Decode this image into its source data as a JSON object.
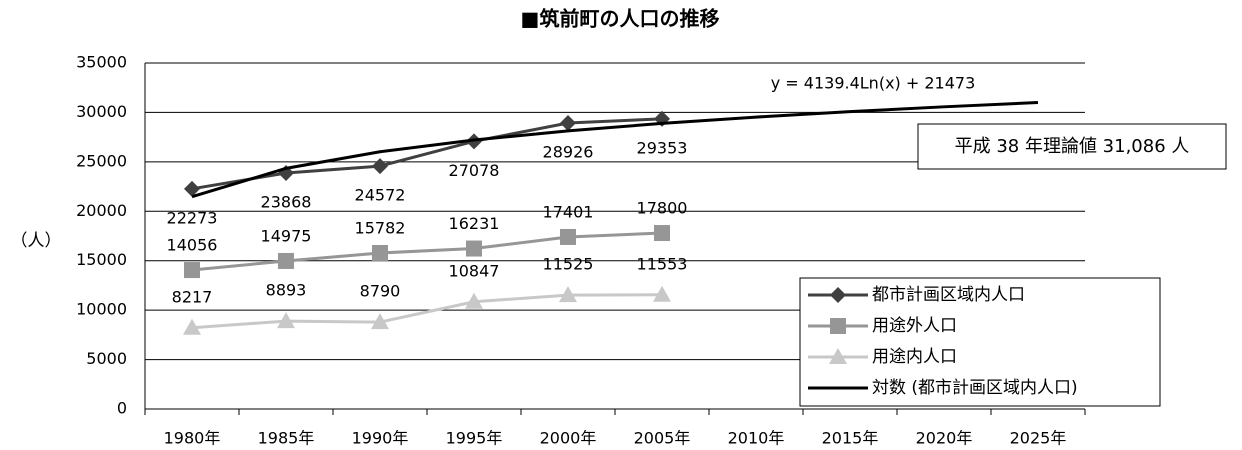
{
  "chart_data": {
    "type": "line",
    "title": "■筑前町の人口の推移",
    "y_label": "（人）",
    "categories": [
      "1980年",
      "1985年",
      "1990年",
      "1995年",
      "2000年",
      "2005年",
      "2010年",
      "2015年",
      "2020年",
      "2025年"
    ],
    "series": [
      {
        "name": "都市計画区域内人口",
        "color": "#404040",
        "marker": "diamond",
        "values": [
          22273,
          23868,
          24572,
          27078,
          28926,
          29353,
          null,
          null,
          null,
          null
        ]
      },
      {
        "name": "用途外人口",
        "color": "#969696",
        "marker": "square",
        "values": [
          14056,
          14975,
          15782,
          16231,
          17401,
          17800,
          null,
          null,
          null,
          null
        ]
      },
      {
        "name": "用途内人口",
        "color": "#c8c8c8",
        "marker": "triangle",
        "values": [
          8217,
          8893,
          8790,
          10847,
          11525,
          11553,
          null,
          null,
          null,
          null
        ]
      },
      {
        "name": "対数 (都市計画区域内人口)",
        "color": "#000000",
        "marker": "none",
        "trendline": true,
        "values": [
          21473,
          24342,
          26021,
          27211,
          28135,
          28890,
          29528,
          30081,
          30568,
          31004
        ]
      }
    ],
    "annotations": [
      "y = 4139.4Ln(x) + 21473",
      "平成 38 年理論値 31,086 人"
    ],
    "ylim": [
      0,
      35000
    ],
    "yticks": [
      0,
      5000,
      10000,
      15000,
      20000,
      25000,
      30000,
      35000
    ],
    "grid": true,
    "legend": "lower right"
  }
}
